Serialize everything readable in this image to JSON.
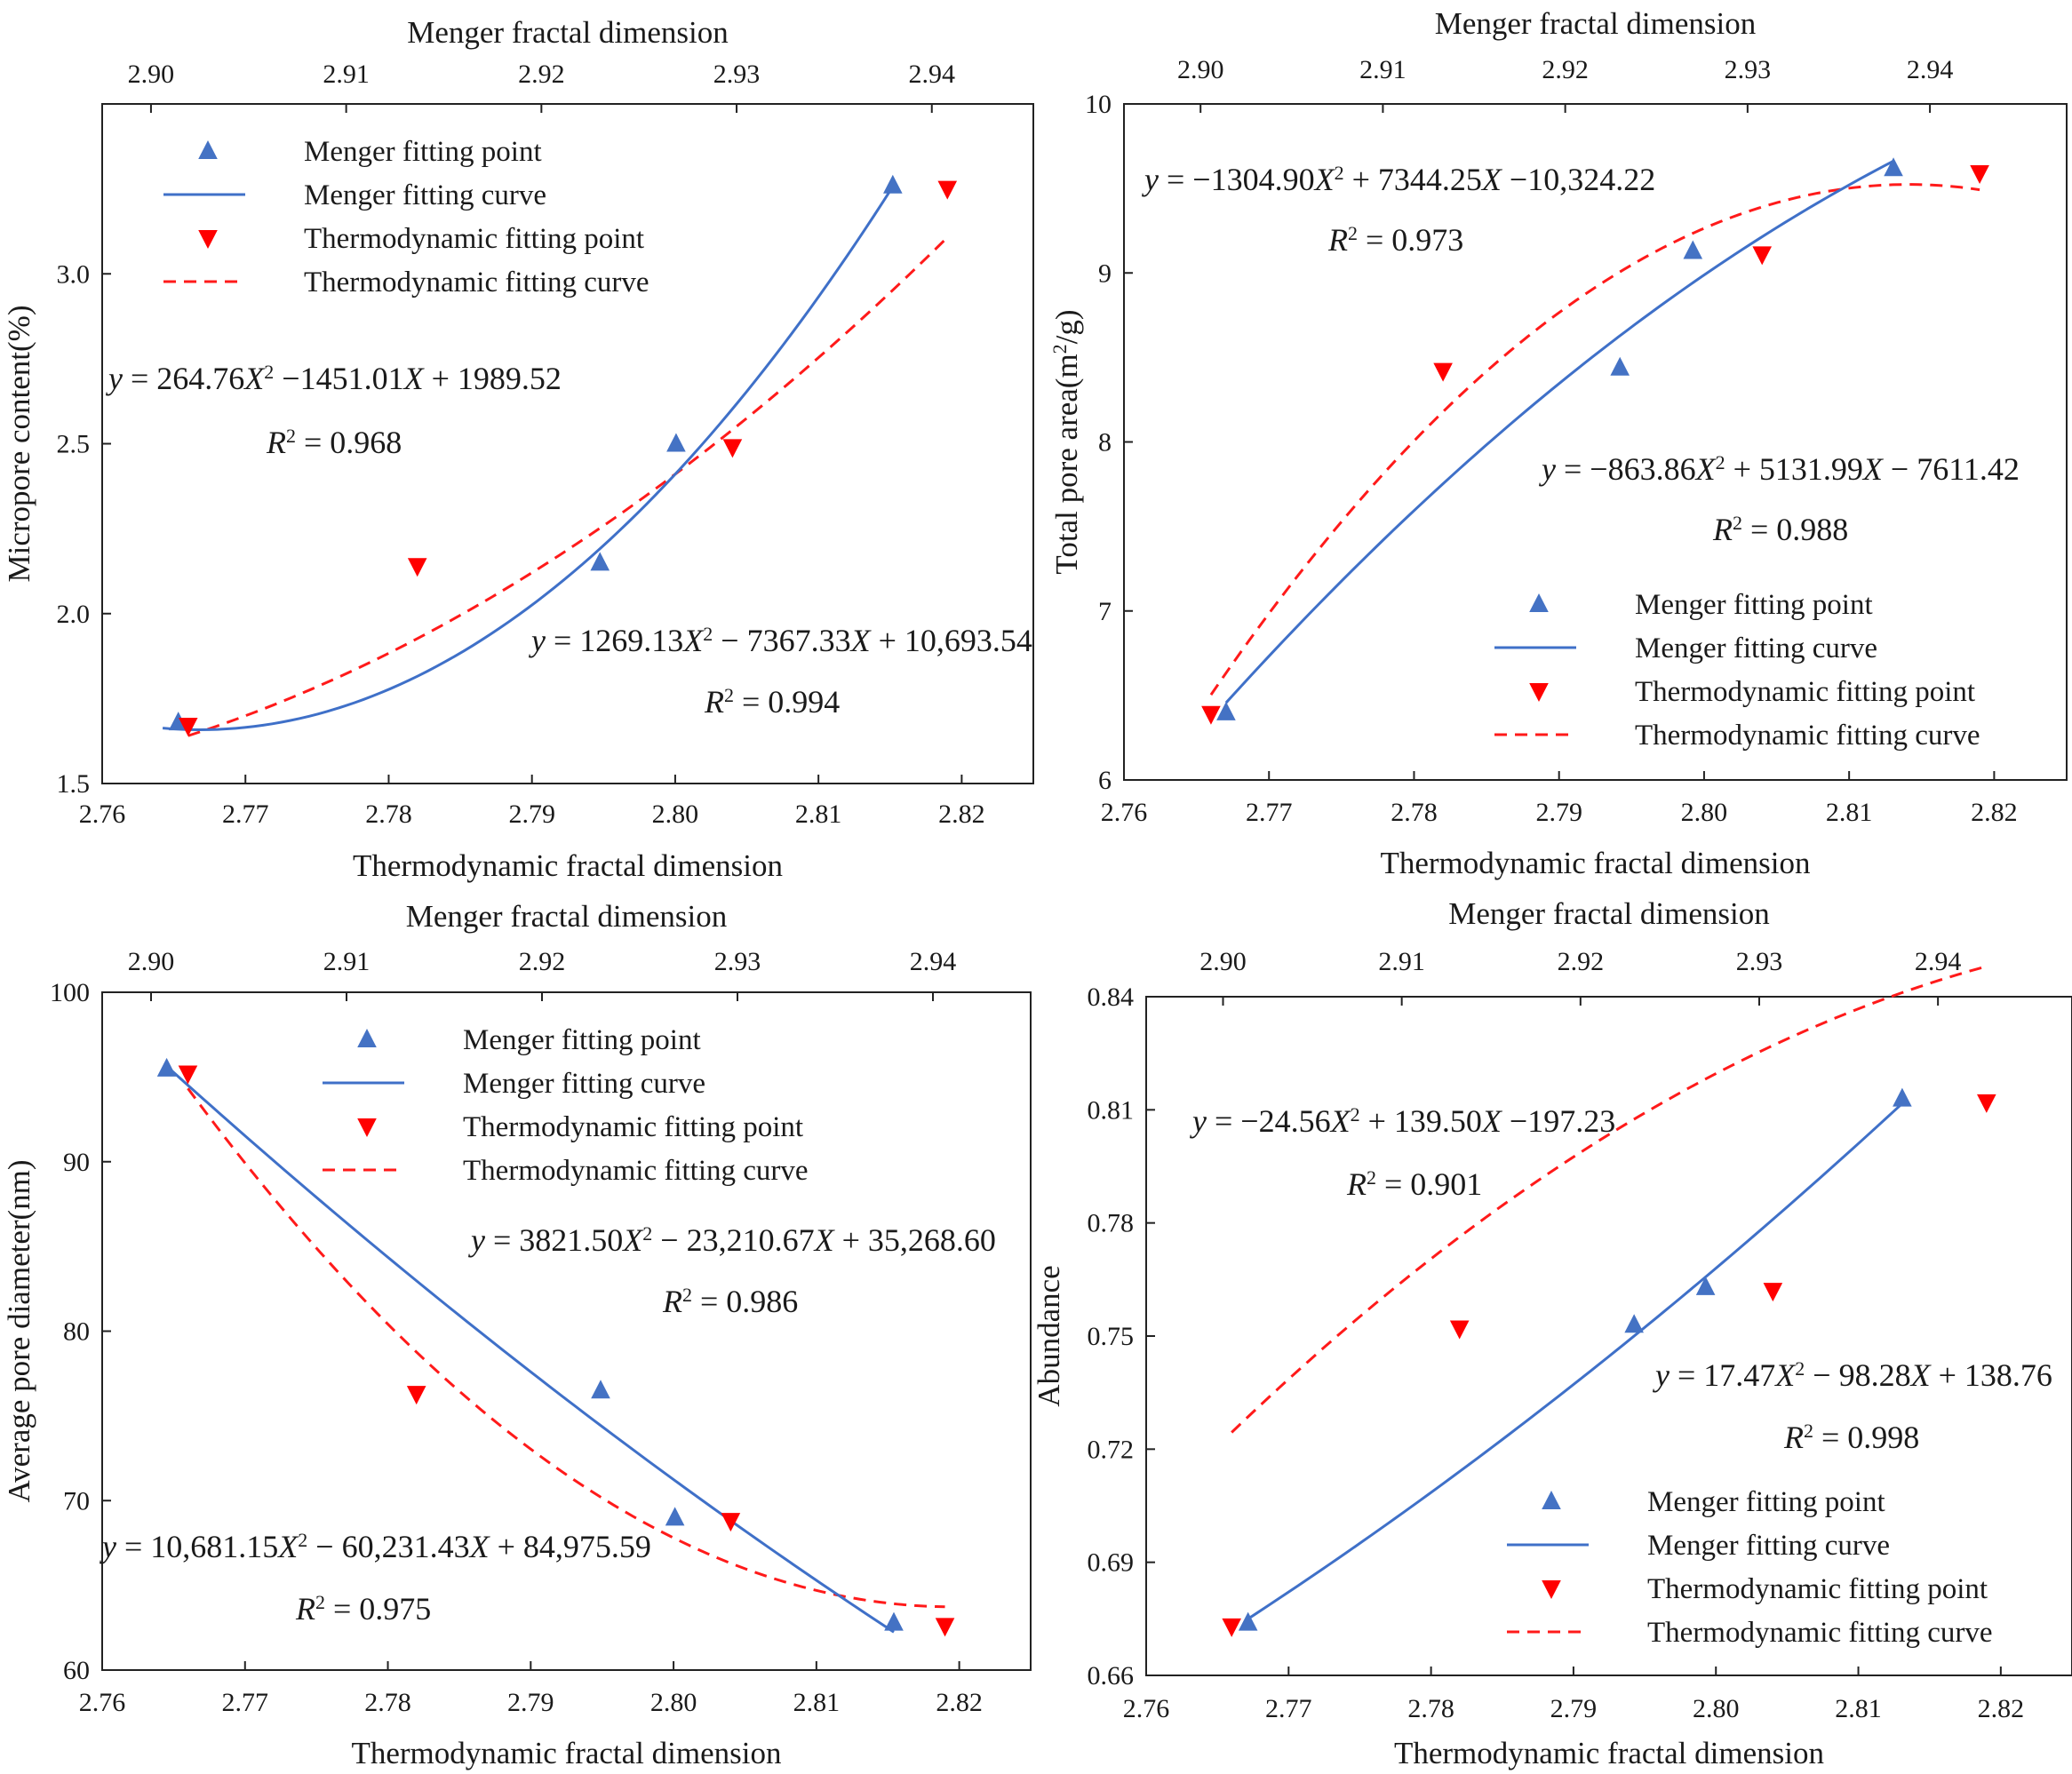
{
  "figure": {
    "marker_color_menger": "#4472c4",
    "marker_color_thermo": "#ff0000",
    "curve_color_menger": "#3f70c8",
    "curve_color_thermo": "#ff1a1a"
  },
  "chart_data": [
    {
      "id": "a",
      "type": "scatter",
      "xlabel": "Thermodynamic fractal dimension",
      "x2label": "Menger fractal dimension",
      "ylabel": "Micropore content(%)",
      "xlim": [
        2.76,
        2.825
      ],
      "x2lim": [
        2.8975,
        2.9452
      ],
      "ylim": [
        1.5,
        3.5
      ],
      "xticks": [
        2.76,
        2.77,
        2.78,
        2.79,
        2.8,
        2.81,
        2.82
      ],
      "x2ticks": [
        2.9,
        2.91,
        2.92,
        2.93,
        2.94
      ],
      "yticks": [
        1.5,
        2.0,
        2.5,
        3.0
      ],
      "ytick_labels": [
        "1.5",
        "2.0",
        "2.5",
        "3.0"
      ],
      "legend": [
        "Menger fitting point",
        "Menger fitting curve",
        "Thermodynamic fitting point",
        "Thermodynamic fitting curve"
      ],
      "legend_position": "top-left",
      "menger_points": [
        [
          2.9014,
          1.68
        ],
        [
          2.923,
          2.15
        ],
        [
          2.9269,
          2.5
        ],
        [
          2.938,
          3.26
        ]
      ],
      "thermo_points": [
        [
          2.766,
          1.67
        ],
        [
          2.782,
          2.14
        ],
        [
          2.804,
          2.49
        ],
        [
          2.819,
          3.25
        ]
      ],
      "menger_fit": {
        "a": 1269.13,
        "b": -7367.33,
        "c": 10693.54,
        "range": [
          2.9006,
          2.938
        ]
      },
      "thermo_fit": {
        "a": 264.76,
        "b": -1451.01,
        "c": 1989.52,
        "range": [
          2.766,
          2.819
        ]
      },
      "equation_thermo": "y = 264.76X² −1451.01X + 1989.52",
      "r2_thermo": "R² = 0.968",
      "equation_menger": "y = 1269.13X² − 7367.33X + 10,693.54",
      "r2_menger": "R² = 0.994"
    },
    {
      "id": "b",
      "type": "scatter",
      "xlabel": "Thermodynamic fractal dimension",
      "x2label": "Menger fractal dimension",
      "ylabel": "Total pore area(m²/g)",
      "xlim": [
        2.76,
        2.825
      ],
      "x2lim": [
        2.8958,
        2.9475
      ],
      "ylim": [
        6,
        10
      ],
      "xticks": [
        2.76,
        2.77,
        2.78,
        2.79,
        2.8,
        2.81,
        2.82
      ],
      "x2ticks": [
        2.9,
        2.91,
        2.92,
        2.93,
        2.94
      ],
      "yticks": [
        6,
        7,
        8,
        9,
        10
      ],
      "ytick_labels": [
        "6",
        "7",
        "8",
        "9",
        "10"
      ],
      "legend": [
        "Menger fitting point",
        "Menger fitting curve",
        "Thermodynamic fitting point",
        "Thermodynamic fitting curve"
      ],
      "legend_position": "bottom-right",
      "menger_points": [
        [
          2.9014,
          6.4
        ],
        [
          2.923,
          8.44
        ],
        [
          2.927,
          9.13
        ],
        [
          2.938,
          9.62
        ]
      ],
      "thermo_points": [
        [
          2.766,
          6.39
        ],
        [
          2.782,
          8.42
        ],
        [
          2.804,
          9.11
        ],
        [
          2.819,
          9.59
        ]
      ],
      "menger_fit": {
        "a": -863.86,
        "b": 5131.99,
        "c": -7611.42,
        "range": [
          2.9014,
          2.938
        ]
      },
      "thermo_fit": {
        "a": -1304.9,
        "b": 7344.25,
        "c": -10324.22,
        "range": [
          2.766,
          2.819
        ]
      },
      "equation_thermo": "y = −1304.90X² + 7344.25X −10,324.22",
      "r2_thermo": "R² = 0.973",
      "equation_menger": "y = −863.86X² + 5131.99X − 7611.42",
      "r2_menger": "R² = 0.988"
    },
    {
      "id": "c",
      "type": "scatter",
      "xlabel": "Thermodynamic fractal dimension",
      "x2label": "Menger fractal dimension",
      "ylabel": "Average pore diameter(nm)",
      "xlim": [
        2.76,
        2.825
      ],
      "x2lim": [
        2.8975,
        2.945
      ],
      "ylim": [
        60,
        100
      ],
      "xticks": [
        2.76,
        2.77,
        2.78,
        2.79,
        2.8,
        2.81,
        2.82
      ],
      "x2ticks": [
        2.9,
        2.91,
        2.92,
        2.93,
        2.94
      ],
      "yticks": [
        60,
        70,
        80,
        90,
        100
      ],
      "ytick_labels": [
        "60",
        "70",
        "80",
        "90",
        "100"
      ],
      "legend": [
        "Menger fitting point",
        "Menger fitting curve",
        "Thermodynamic fitting point",
        "Thermodynamic fitting curve"
      ],
      "legend_position": "top-center",
      "menger_points": [
        [
          2.9008,
          95.5
        ],
        [
          2.923,
          76.5
        ],
        [
          2.9268,
          69.0
        ],
        [
          2.938,
          62.8
        ]
      ],
      "thermo_points": [
        [
          2.766,
          95.2
        ],
        [
          2.782,
          76.3
        ],
        [
          2.804,
          68.8
        ],
        [
          2.819,
          62.6
        ]
      ],
      "menger_fit": {
        "a": 3821.5,
        "b": -23210.67,
        "c": 35268.6,
        "range": [
          2.9008,
          2.938
        ]
      },
      "thermo_fit": {
        "a": 10681.15,
        "b": -60231.43,
        "c": 84975.59,
        "range": [
          2.766,
          2.819
        ]
      },
      "equation_menger": "y = 3821.50X² − 23,210.67X + 35,268.60",
      "r2_menger": "R² = 0.986",
      "equation_thermo": "y = 10,681.15X² − 60,231.43X + 84,975.59",
      "r2_thermo": "R² = 0.975"
    },
    {
      "id": "d",
      "type": "scatter",
      "xlabel": "Thermodynamic fractal dimension",
      "x2label": "Menger fractal dimension",
      "ylabel": "Abundance",
      "xlim": [
        2.76,
        2.825
      ],
      "x2lim": [
        2.8957,
        2.9475
      ],
      "ylim": [
        0.66,
        0.84
      ],
      "xticks": [
        2.76,
        2.77,
        2.78,
        2.79,
        2.8,
        2.81,
        2.82
      ],
      "x2ticks": [
        2.9,
        2.91,
        2.92,
        2.93,
        2.94
      ],
      "yticks": [
        0.66,
        0.69,
        0.72,
        0.75,
        0.78,
        0.81,
        0.84
      ],
      "ytick_labels": [
        "0.66",
        "0.69",
        "0.72",
        "0.75",
        "0.78",
        "0.81",
        "0.84"
      ],
      "legend": [
        "Menger fitting point",
        "Menger fitting curve",
        "Thermodynamic fitting point",
        "Thermodynamic fitting curve"
      ],
      "legend_position": "bottom-right",
      "menger_points": [
        [
          2.9014,
          0.674
        ],
        [
          2.923,
          0.753
        ],
        [
          2.927,
          0.763
        ],
        [
          2.938,
          0.813
        ]
      ],
      "thermo_points": [
        [
          2.766,
          0.673
        ],
        [
          2.782,
          0.752
        ],
        [
          2.804,
          0.762
        ],
        [
          2.819,
          0.812
        ]
      ],
      "menger_fit": {
        "a": 17.47,
        "b": -98.28,
        "c": 138.76,
        "range": [
          2.9014,
          2.938
        ]
      },
      "thermo_fit": {
        "a": -24.56,
        "b": 139.5,
        "c": -197.23,
        "range": [
          2.766,
          2.819
        ]
      },
      "equation_thermo": "y = −24.56X² + 139.50X −197.23",
      "r2_thermo": "R² = 0.901",
      "equation_menger": "y = 17.47X² − 98.28X + 138.76",
      "r2_menger": "R² = 0.998"
    }
  ]
}
